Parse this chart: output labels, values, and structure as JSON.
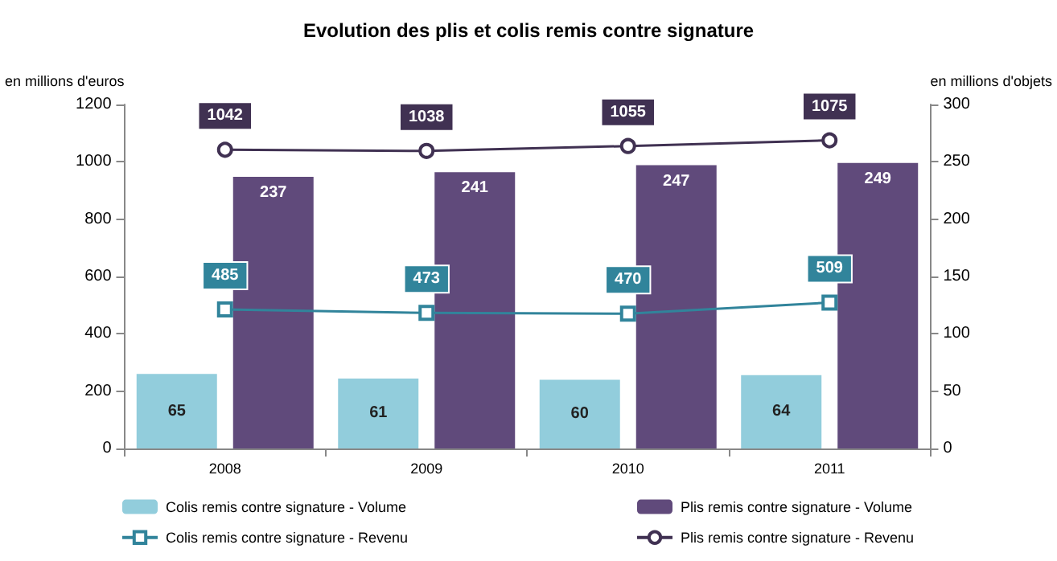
{
  "chart_data": {
    "type": "bar",
    "title": "Evolution des plis et colis remis contre signature",
    "ylabel": "en millions d'euros",
    "y2label": "en millions d'objets",
    "categories": [
      "2008",
      "2009",
      "2010",
      "2011"
    ],
    "series": [
      {
        "name": "Colis remis contre signature - Volume",
        "color": "#92cddc",
        "values": [
          65,
          61,
          60,
          64
        ],
        "axis": "y2"
      },
      {
        "name": "Plis remis contre signature - Volume",
        "color": "#604a7b",
        "values": [
          237,
          241,
          247,
          249
        ],
        "axis": "y2"
      },
      {
        "name": "Colis remis contre signature - Revenu",
        "type": "line",
        "color": "#31849b",
        "values": [
          485,
          473,
          470,
          509
        ],
        "axis": "y",
        "marker": "square"
      },
      {
        "name": "Plis remis contre signature - Revenu",
        "type": "line",
        "color": "#403152",
        "values": [
          1042,
          1038,
          1055,
          1075
        ],
        "axis": "y",
        "marker": "circle"
      }
    ],
    "ylim": [
      0,
      1200
    ],
    "yticks": [
      0,
      200,
      400,
      600,
      800,
      1000,
      1200
    ],
    "y2lim": [
      0,
      300
    ],
    "y2ticks": [
      0,
      50,
      100,
      150,
      200,
      250,
      300
    ],
    "tick_labels": "xy",
    "line_style": "solid",
    "data_labels": true,
    "grid": false,
    "legend": "bottom"
  }
}
